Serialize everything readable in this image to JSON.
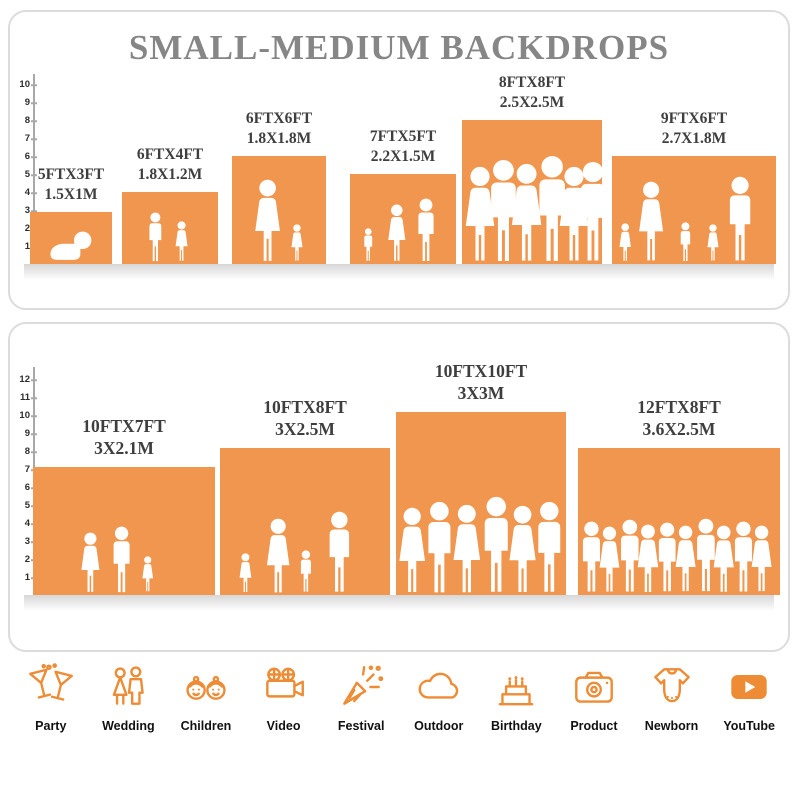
{
  "title": "SMALL-MEDIUM BACKDROPS",
  "colors": {
    "bar_orange": "#F0964E",
    "icon_orange": "#EE8C35",
    "title_gray": "#868686",
    "label_dark": "#3E3E3E"
  },
  "panels": [
    {
      "name": "small-medium-sizes",
      "ruler": [
        1,
        2,
        3,
        4,
        5,
        6,
        7,
        8,
        9,
        10
      ],
      "bars": [
        {
          "size_ft": "5FTX3FT",
          "size_m": "1.5X1M",
          "height_ft": 3,
          "width_ft": 5,
          "figures": "crawling-baby"
        },
        {
          "size_ft": "6FTX4FT",
          "size_m": "1.8X1.2M",
          "height_ft": 4,
          "width_ft": 6,
          "figures": "two-children"
        },
        {
          "size_ft": "6FTX6FT",
          "size_m": "1.8X1.8M",
          "height_ft": 6,
          "width_ft": 6,
          "figures": "mother-and-child"
        },
        {
          "size_ft": "7FTX5FT",
          "size_m": "2.2X1.5M",
          "height_ft": 5,
          "width_ft": 7,
          "figures": "family-of-three"
        },
        {
          "size_ft": "8FTX8FT",
          "size_m": "2.5X2.5M",
          "height_ft": 8,
          "width_ft": 8,
          "figures": "group-of-adults"
        },
        {
          "size_ft": "9FTX6FT",
          "size_m": "2.7X1.8M",
          "height_ft": 6,
          "width_ft": 9,
          "figures": "family-of-five"
        }
      ]
    },
    {
      "name": "large-sizes",
      "ruler": [
        1,
        2,
        3,
        4,
        5,
        6,
        7,
        8,
        9,
        10,
        11,
        12
      ],
      "bars": [
        {
          "size_ft": "10FTX7FT",
          "size_m": "3X2.1M",
          "height_ft": 7,
          "width_ft": 10,
          "figures": "family-of-three"
        },
        {
          "size_ft": "10FTX8FT",
          "size_m": "3X2.5M",
          "height_ft": 8,
          "width_ft": 10,
          "figures": "family-of-four"
        },
        {
          "size_ft": "10FTX10FT",
          "size_m": "3X3M",
          "height_ft": 10,
          "width_ft": 10,
          "figures": "group-of-six"
        },
        {
          "size_ft": "12FTX8FT",
          "size_m": "3.6X2.5M",
          "height_ft": 8,
          "width_ft": 12,
          "figures": "large-group"
        }
      ]
    }
  ],
  "categories": [
    {
      "label": "Party",
      "icon": "party-icon"
    },
    {
      "label": "Wedding",
      "icon": "wedding-icon"
    },
    {
      "label": "Children",
      "icon": "children-icon"
    },
    {
      "label": "Video",
      "icon": "video-icon"
    },
    {
      "label": "Festival",
      "icon": "festival-icon"
    },
    {
      "label": "Outdoor",
      "icon": "outdoor-icon"
    },
    {
      "label": "Birthday",
      "icon": "birthday-icon"
    },
    {
      "label": "Product",
      "icon": "product-icon"
    },
    {
      "label": "Newborn",
      "icon": "newborn-icon"
    },
    {
      "label": "YouTube",
      "icon": "youtube-icon"
    }
  ]
}
